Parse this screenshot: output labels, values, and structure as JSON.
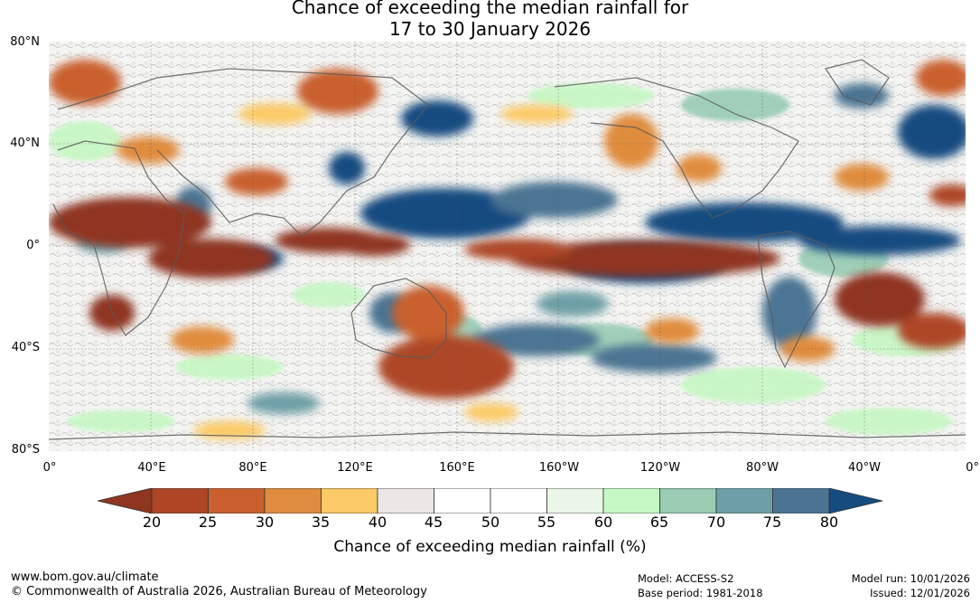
{
  "title": {
    "line1": "Chance of exceeding the median rainfall for",
    "line2": "17 to 30 January 2026"
  },
  "map": {
    "lat_labels": [
      "80°N",
      "40°N",
      "0°",
      "40°S",
      "80°S"
    ],
    "lon_labels": [
      "0°",
      "40°E",
      "80°E",
      "120°E",
      "160°E",
      "160°W",
      "120°W",
      "80°W",
      "40°W",
      "0°"
    ]
  },
  "colorbar": {
    "ticks": [
      "20",
      "25",
      "30",
      "35",
      "40",
      "45",
      "50",
      "55",
      "60",
      "65",
      "70",
      "75",
      "80"
    ],
    "label": "Chance of exceeding median rainfall (%)",
    "colors": {
      "below_20": "#8f3620",
      "20_25": "#ae4625",
      "25_30": "#c9602e",
      "30_35": "#e08c3e",
      "35_40": "#fcca66",
      "40_45": "#e9e8e4",
      "45_50": "#ffffff",
      "50_55": "#ffffff",
      "55_60": "#eaf6e7",
      "60_65": "#c6f8c4",
      "65_70": "#99ccb3",
      "70_75": "#6e9fa6",
      "75_80": "#4b7493",
      "above_80": "#154c80"
    }
  },
  "footer": {
    "url": "www.bom.gov.au/climate",
    "copyright": "© Commonwealth of Australia 2026, Australian Bureau of Meteorology",
    "model": "Model: ACCESS-S2",
    "base_period": "Base period: 1981-2018",
    "model_run": "Model run: 10/01/2026",
    "issued": "Issued: 12/01/2026"
  }
}
